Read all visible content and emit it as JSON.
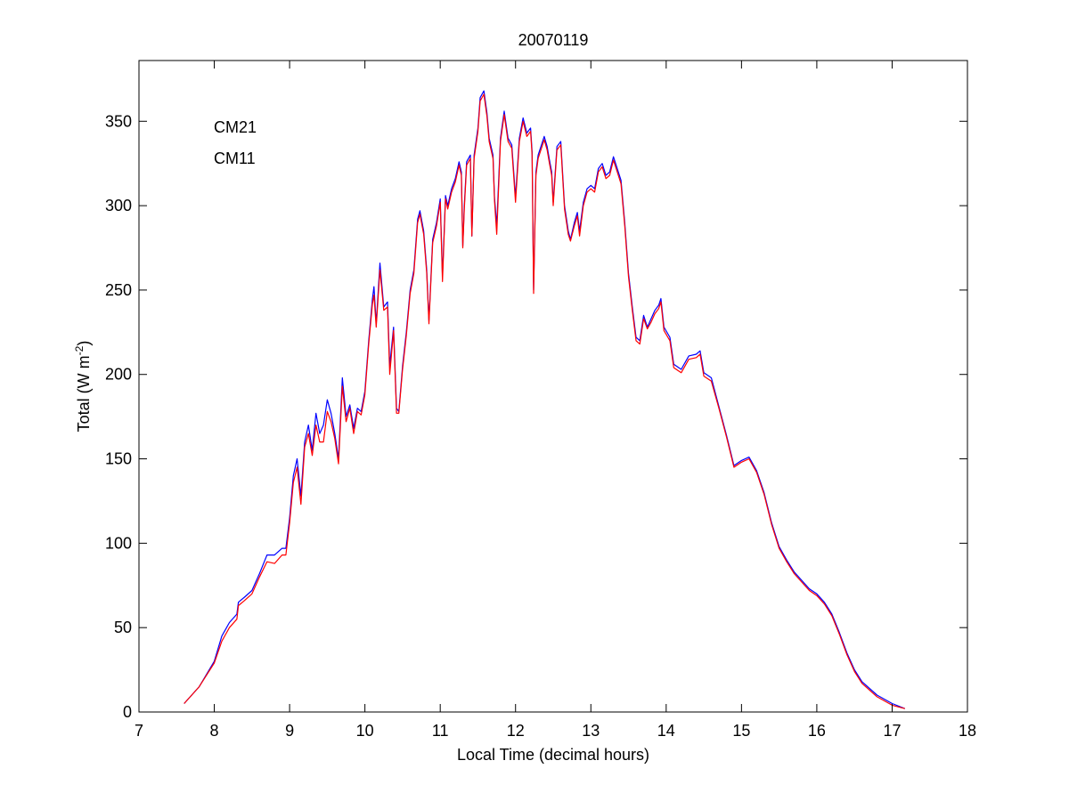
{
  "chart_data": {
    "type": "line",
    "title": "20070119",
    "xlabel": "Local Time (decimal hours)",
    "ylabel_main": "Total (W m",
    "ylabel_sup": "-2",
    "ylabel_close": ")",
    "xlim": [
      7,
      18
    ],
    "ylim": [
      0,
      386
    ],
    "xticks": [
      7,
      8,
      9,
      10,
      11,
      12,
      13,
      14,
      15,
      16,
      17,
      18
    ],
    "yticks": [
      0,
      50,
      100,
      150,
      200,
      250,
      300,
      350
    ],
    "grid": false,
    "legend_position": "top-left",
    "series": [
      {
        "name": "CM21",
        "color": "#0000ff",
        "points": [
          [
            7.6,
            5
          ],
          [
            7.8,
            15
          ],
          [
            8.0,
            30
          ],
          [
            8.1,
            45
          ],
          [
            8.2,
            53
          ],
          [
            8.3,
            58
          ],
          [
            8.32,
            65
          ],
          [
            8.4,
            68
          ],
          [
            8.5,
            72
          ],
          [
            8.6,
            82
          ],
          [
            8.7,
            93
          ],
          [
            8.8,
            93
          ],
          [
            8.9,
            97
          ],
          [
            8.95,
            97
          ],
          [
            9.0,
            115
          ],
          [
            9.05,
            140
          ],
          [
            9.1,
            150
          ],
          [
            9.15,
            128
          ],
          [
            9.2,
            160
          ],
          [
            9.25,
            170
          ],
          [
            9.3,
            155
          ],
          [
            9.35,
            177
          ],
          [
            9.4,
            165
          ],
          [
            9.45,
            170
          ],
          [
            9.5,
            185
          ],
          [
            9.55,
            177
          ],
          [
            9.6,
            165
          ],
          [
            9.65,
            150
          ],
          [
            9.7,
            198
          ],
          [
            9.75,
            175
          ],
          [
            9.8,
            182
          ],
          [
            9.85,
            168
          ],
          [
            9.9,
            180
          ],
          [
            9.95,
            178
          ],
          [
            10.0,
            190
          ],
          [
            10.05,
            220
          ],
          [
            10.1,
            245
          ],
          [
            10.12,
            252
          ],
          [
            10.15,
            230
          ],
          [
            10.2,
            266
          ],
          [
            10.25,
            240
          ],
          [
            10.3,
            243
          ],
          [
            10.33,
            205
          ],
          [
            10.38,
            228
          ],
          [
            10.42,
            180
          ],
          [
            10.45,
            178
          ],
          [
            10.5,
            205
          ],
          [
            10.55,
            225
          ],
          [
            10.6,
            250
          ],
          [
            10.65,
            262
          ],
          [
            10.7,
            292
          ],
          [
            10.73,
            297
          ],
          [
            10.78,
            285
          ],
          [
            10.82,
            262
          ],
          [
            10.85,
            232
          ],
          [
            10.9,
            280
          ],
          [
            10.95,
            290
          ],
          [
            11.0,
            304
          ],
          [
            11.03,
            258
          ],
          [
            11.07,
            306
          ],
          [
            11.1,
            300
          ],
          [
            11.15,
            310
          ],
          [
            11.2,
            316
          ],
          [
            11.25,
            326
          ],
          [
            11.28,
            320
          ],
          [
            11.3,
            276
          ],
          [
            11.32,
            300
          ],
          [
            11.35,
            326
          ],
          [
            11.4,
            330
          ],
          [
            11.42,
            282
          ],
          [
            11.45,
            330
          ],
          [
            11.5,
            346
          ],
          [
            11.53,
            364
          ],
          [
            11.58,
            368
          ],
          [
            11.62,
            355
          ],
          [
            11.65,
            340
          ],
          [
            11.7,
            330
          ],
          [
            11.72,
            305
          ],
          [
            11.75,
            288
          ],
          [
            11.8,
            340
          ],
          [
            11.85,
            356
          ],
          [
            11.9,
            340
          ],
          [
            11.95,
            336
          ],
          [
            12.0,
            305
          ],
          [
            12.05,
            340
          ],
          [
            12.1,
            352
          ],
          [
            12.15,
            343
          ],
          [
            12.2,
            346
          ],
          [
            12.22,
            332
          ],
          [
            12.24,
            250
          ],
          [
            12.27,
            320
          ],
          [
            12.3,
            330
          ],
          [
            12.38,
            341
          ],
          [
            12.42,
            335
          ],
          [
            12.45,
            327
          ],
          [
            12.48,
            320
          ],
          [
            12.5,
            302
          ],
          [
            12.55,
            335
          ],
          [
            12.6,
            338
          ],
          [
            12.65,
            300
          ],
          [
            12.7,
            285
          ],
          [
            12.73,
            280
          ],
          [
            12.78,
            290
          ],
          [
            12.82,
            296
          ],
          [
            12.85,
            285
          ],
          [
            12.9,
            302
          ],
          [
            12.95,
            310
          ],
          [
            13.0,
            312
          ],
          [
            13.05,
            310
          ],
          [
            13.1,
            322
          ],
          [
            13.15,
            325
          ],
          [
            13.2,
            318
          ],
          [
            13.25,
            320
          ],
          [
            13.3,
            329
          ],
          [
            13.35,
            322
          ],
          [
            13.4,
            315
          ],
          [
            13.45,
            290
          ],
          [
            13.5,
            260
          ],
          [
            13.55,
            240
          ],
          [
            13.6,
            222
          ],
          [
            13.65,
            220
          ],
          [
            13.7,
            235
          ],
          [
            13.75,
            228
          ],
          [
            13.8,
            233
          ],
          [
            13.85,
            238
          ],
          [
            13.9,
            241
          ],
          [
            13.93,
            245
          ],
          [
            13.97,
            228
          ],
          [
            14.05,
            222
          ],
          [
            14.1,
            206
          ],
          [
            14.2,
            203
          ],
          [
            14.3,
            211
          ],
          [
            14.4,
            212
          ],
          [
            14.45,
            214
          ],
          [
            14.5,
            201
          ],
          [
            14.6,
            198
          ],
          [
            14.7,
            181
          ],
          [
            14.8,
            164
          ],
          [
            14.9,
            146
          ],
          [
            15.0,
            149
          ],
          [
            15.1,
            151
          ],
          [
            15.2,
            143
          ],
          [
            15.3,
            130
          ],
          [
            15.4,
            112
          ],
          [
            15.5,
            98
          ],
          [
            15.6,
            90
          ],
          [
            15.7,
            83
          ],
          [
            15.8,
            78
          ],
          [
            15.9,
            73
          ],
          [
            16.0,
            70
          ],
          [
            16.1,
            65
          ],
          [
            16.2,
            58
          ],
          [
            16.3,
            47
          ],
          [
            16.4,
            35
          ],
          [
            16.5,
            25
          ],
          [
            16.6,
            18
          ],
          [
            16.8,
            10
          ],
          [
            17.0,
            5
          ],
          [
            17.17,
            2
          ]
        ]
      },
      {
        "name": "CM11",
        "color": "#ff0000",
        "points": [
          [
            7.6,
            5
          ],
          [
            7.8,
            15
          ],
          [
            8.0,
            29
          ],
          [
            8.1,
            42
          ],
          [
            8.2,
            50
          ],
          [
            8.3,
            55
          ],
          [
            8.32,
            63
          ],
          [
            8.4,
            66
          ],
          [
            8.5,
            70
          ],
          [
            8.6,
            80
          ],
          [
            8.7,
            89
          ],
          [
            8.8,
            88
          ],
          [
            8.9,
            93
          ],
          [
            8.95,
            93
          ],
          [
            9.0,
            112
          ],
          [
            9.05,
            136
          ],
          [
            9.1,
            145
          ],
          [
            9.15,
            123
          ],
          [
            9.2,
            157
          ],
          [
            9.25,
            165
          ],
          [
            9.3,
            152
          ],
          [
            9.35,
            170
          ],
          [
            9.4,
            160
          ],
          [
            9.45,
            160
          ],
          [
            9.5,
            178
          ],
          [
            9.55,
            172
          ],
          [
            9.6,
            162
          ],
          [
            9.65,
            147
          ],
          [
            9.7,
            193
          ],
          [
            9.75,
            172
          ],
          [
            9.8,
            180
          ],
          [
            9.85,
            165
          ],
          [
            9.9,
            178
          ],
          [
            9.95,
            176
          ],
          [
            10.0,
            188
          ],
          [
            10.05,
            218
          ],
          [
            10.1,
            242
          ],
          [
            10.12,
            247
          ],
          [
            10.15,
            228
          ],
          [
            10.2,
            262
          ],
          [
            10.25,
            238
          ],
          [
            10.3,
            240
          ],
          [
            10.33,
            200
          ],
          [
            10.38,
            226
          ],
          [
            10.42,
            177
          ],
          [
            10.45,
            177
          ],
          [
            10.5,
            203
          ],
          [
            10.55,
            223
          ],
          [
            10.6,
            248
          ],
          [
            10.65,
            260
          ],
          [
            10.7,
            290
          ],
          [
            10.73,
            295
          ],
          [
            10.78,
            283
          ],
          [
            10.82,
            260
          ],
          [
            10.85,
            230
          ],
          [
            10.9,
            278
          ],
          [
            10.95,
            288
          ],
          [
            11.0,
            302
          ],
          [
            11.03,
            255
          ],
          [
            11.07,
            304
          ],
          [
            11.1,
            298
          ],
          [
            11.15,
            308
          ],
          [
            11.2,
            314
          ],
          [
            11.25,
            324
          ],
          [
            11.28,
            318
          ],
          [
            11.3,
            275
          ],
          [
            11.32,
            298
          ],
          [
            11.35,
            324
          ],
          [
            11.4,
            328
          ],
          [
            11.42,
            282
          ],
          [
            11.45,
            328
          ],
          [
            11.5,
            344
          ],
          [
            11.53,
            362
          ],
          [
            11.58,
            366
          ],
          [
            11.62,
            353
          ],
          [
            11.65,
            338
          ],
          [
            11.7,
            328
          ],
          [
            11.72,
            303
          ],
          [
            11.75,
            283
          ],
          [
            11.8,
            338
          ],
          [
            11.85,
            354
          ],
          [
            11.9,
            338
          ],
          [
            11.95,
            334
          ],
          [
            12.0,
            302
          ],
          [
            12.05,
            338
          ],
          [
            12.1,
            350
          ],
          [
            12.15,
            341
          ],
          [
            12.2,
            344
          ],
          [
            12.22,
            330
          ],
          [
            12.24,
            248
          ],
          [
            12.27,
            318
          ],
          [
            12.3,
            328
          ],
          [
            12.38,
            339
          ],
          [
            12.42,
            333
          ],
          [
            12.45,
            325
          ],
          [
            12.48,
            318
          ],
          [
            12.5,
            300
          ],
          [
            12.55,
            333
          ],
          [
            12.6,
            336
          ],
          [
            12.65,
            298
          ],
          [
            12.7,
            283
          ],
          [
            12.73,
            279
          ],
          [
            12.78,
            288
          ],
          [
            12.82,
            294
          ],
          [
            12.85,
            282
          ],
          [
            12.9,
            300
          ],
          [
            12.95,
            308
          ],
          [
            13.0,
            310
          ],
          [
            13.05,
            308
          ],
          [
            13.1,
            320
          ],
          [
            13.15,
            323
          ],
          [
            13.2,
            316
          ],
          [
            13.25,
            318
          ],
          [
            13.3,
            327
          ],
          [
            13.35,
            320
          ],
          [
            13.4,
            313
          ],
          [
            13.45,
            288
          ],
          [
            13.5,
            258
          ],
          [
            13.55,
            238
          ],
          [
            13.6,
            220
          ],
          [
            13.65,
            218
          ],
          [
            13.7,
            233
          ],
          [
            13.75,
            227
          ],
          [
            13.8,
            231
          ],
          [
            13.85,
            236
          ],
          [
            13.9,
            239
          ],
          [
            13.93,
            243
          ],
          [
            13.97,
            226
          ],
          [
            14.05,
            220
          ],
          [
            14.1,
            204
          ],
          [
            14.2,
            201
          ],
          [
            14.3,
            209
          ],
          [
            14.4,
            210
          ],
          [
            14.45,
            212
          ],
          [
            14.5,
            199
          ],
          [
            14.6,
            196
          ],
          [
            14.7,
            180
          ],
          [
            14.8,
            163
          ],
          [
            14.9,
            145
          ],
          [
            15.0,
            148
          ],
          [
            15.1,
            150
          ],
          [
            15.2,
            142
          ],
          [
            15.3,
            129
          ],
          [
            15.4,
            111
          ],
          [
            15.5,
            97
          ],
          [
            15.6,
            89
          ],
          [
            15.7,
            82
          ],
          [
            15.8,
            77
          ],
          [
            15.9,
            72
          ],
          [
            16.0,
            69
          ],
          [
            16.1,
            64
          ],
          [
            16.2,
            57
          ],
          [
            16.3,
            46
          ],
          [
            16.4,
            34
          ],
          [
            16.5,
            24
          ],
          [
            16.6,
            17
          ],
          [
            16.8,
            9
          ],
          [
            17.0,
            4
          ],
          [
            17.17,
            2
          ]
        ]
      }
    ]
  }
}
